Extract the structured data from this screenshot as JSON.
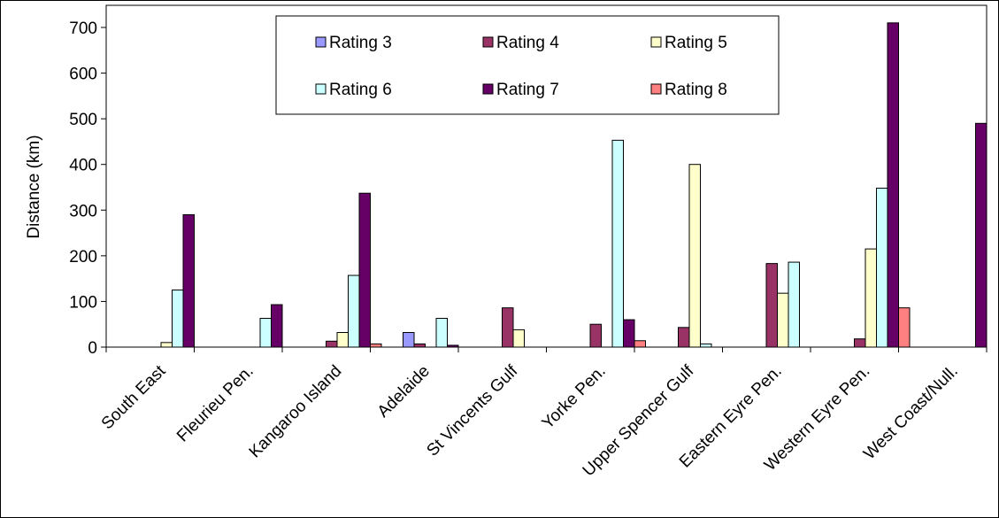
{
  "chart_data": {
    "type": "bar",
    "title": "",
    "xlabel": "",
    "ylabel": "Distance (km)",
    "ylim": [
      0,
      700
    ],
    "yticks": [
      0,
      100,
      200,
      300,
      400,
      500,
      600,
      700
    ],
    "grid": false,
    "legend": {
      "placement": "top-center",
      "columns": 3
    },
    "categories": [
      "South East",
      "Fleurieu Pen.",
      "Kangaroo Island",
      "Adelaide",
      "St Vincents Gulf",
      "Yorke Pen.",
      "Upper Spencer Gulf",
      "Eastern Eyre Pen.",
      "Western Eyre Pen.",
      "West Coast/Null."
    ],
    "series": [
      {
        "name": "Rating 3",
        "color": "#9999ff",
        "values": [
          0,
          0,
          0,
          32,
          0,
          0,
          0,
          0,
          0,
          0
        ]
      },
      {
        "name": "Rating 4",
        "color": "#993366",
        "values": [
          0,
          0,
          13,
          7,
          86,
          50,
          43,
          183,
          18,
          0
        ]
      },
      {
        "name": "Rating 5",
        "color": "#ffffcc",
        "values": [
          10,
          0,
          32,
          0,
          38,
          0,
          400,
          118,
          215,
          0
        ]
      },
      {
        "name": "Rating 6",
        "color": "#ccffff",
        "values": [
          125,
          63,
          157,
          63,
          0,
          453,
          7,
          186,
          348,
          0
        ]
      },
      {
        "name": "Rating 7",
        "color": "#660066",
        "values": [
          290,
          93,
          337,
          4,
          0,
          60,
          0,
          0,
          710,
          490
        ]
      },
      {
        "name": "Rating 8",
        "color": "#ff8080",
        "values": [
          0,
          0,
          7,
          0,
          0,
          14,
          0,
          0,
          86,
          0
        ]
      }
    ]
  }
}
